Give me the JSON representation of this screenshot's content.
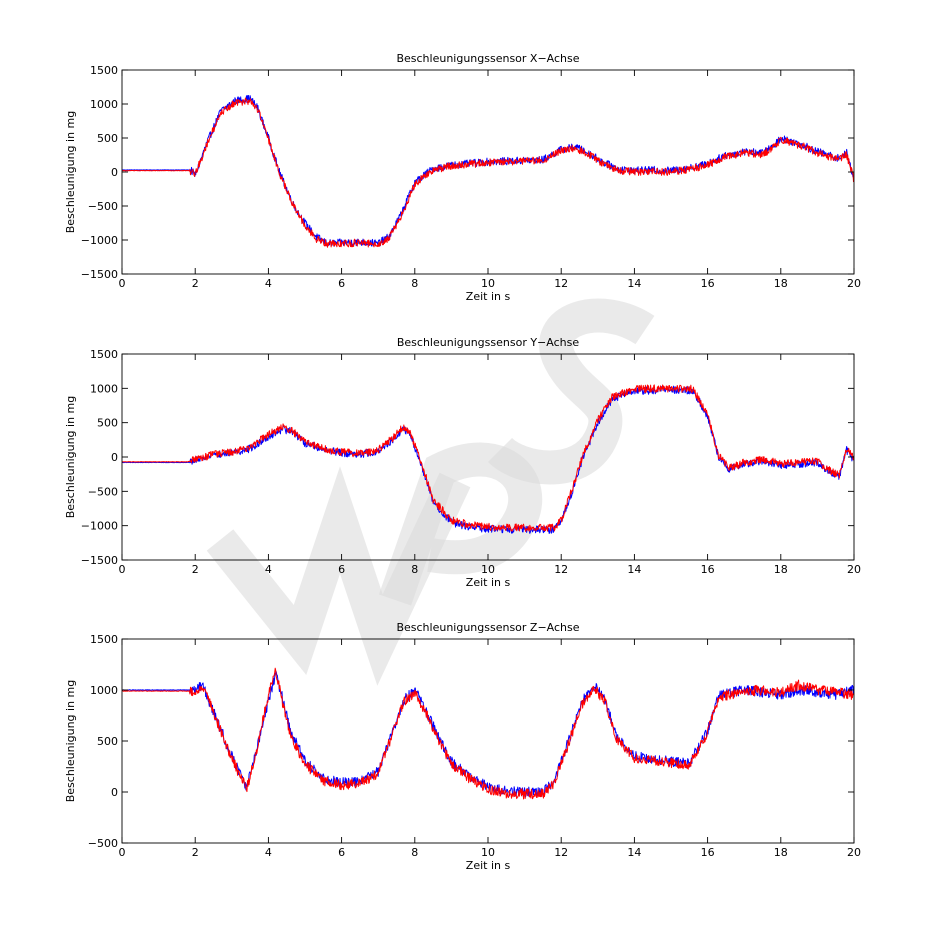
{
  "figure": {
    "background": "#ffffff",
    "watermark_icon": "wps-watermark-icon"
  },
  "chart_data": [
    {
      "type": "line",
      "title": "Beschleunigungssensor X−Achse",
      "xlabel": "Zeit in s",
      "ylabel": "Beschleunigung in mg",
      "xlim": [
        0,
        20
      ],
      "ylim": [
        -1500,
        1500
      ],
      "xticks": [
        0,
        2,
        4,
        6,
        8,
        10,
        12,
        14,
        16,
        18,
        20
      ],
      "yticks": [
        1500,
        1000,
        500,
        0,
        -500,
        -1000,
        -1500
      ],
      "grid": false,
      "noise_amplitude": 55,
      "series": [
        {
          "color": "#0000ff",
          "x": [
            0,
            1.8,
            1.9,
            2.0,
            2.3,
            2.7,
            3.1,
            3.5,
            3.7,
            4.0,
            4.3,
            4.7,
            5.0,
            5.3,
            5.6,
            6.0,
            6.5,
            7.0,
            7.3,
            7.6,
            8.0,
            8.5,
            9.0,
            10.0,
            11.0,
            11.5,
            12.0,
            12.4,
            12.8,
            13.2,
            13.6,
            14.0,
            14.5,
            15.0,
            15.5,
            16.0,
            16.5,
            17.0,
            17.5,
            17.8,
            18.0,
            18.3,
            18.6,
            19.0,
            19.3,
            19.6,
            19.8,
            20.0
          ],
          "y": [
            30,
            30,
            20,
            -50,
            400,
            900,
            1050,
            1080,
            950,
            500,
            0,
            -500,
            -750,
            -950,
            -1050,
            -1040,
            -1030,
            -1050,
            -950,
            -650,
            -150,
            50,
            100,
            150,
            170,
            180,
            330,
            370,
            260,
            130,
            40,
            20,
            30,
            20,
            60,
            120,
            250,
            300,
            280,
            380,
            500,
            450,
            400,
            300,
            250,
            200,
            280,
            -100
          ]
        },
        {
          "color": "#ff0000",
          "x": [
            0,
            1.8,
            1.9,
            2.0,
            2.3,
            2.7,
            3.1,
            3.5,
            3.7,
            4.0,
            4.3,
            4.7,
            5.0,
            5.3,
            5.6,
            6.0,
            6.5,
            7.0,
            7.3,
            7.6,
            8.0,
            8.5,
            9.0,
            10.0,
            11.0,
            11.5,
            12.0,
            12.4,
            12.8,
            13.2,
            13.6,
            14.0,
            14.5,
            15.0,
            15.5,
            16.0,
            16.5,
            17.0,
            17.5,
            17.8,
            18.0,
            18.3,
            18.6,
            19.0,
            19.3,
            19.6,
            19.8,
            20.0
          ],
          "y": [
            20,
            20,
            10,
            -40,
            380,
            880,
            1020,
            1050,
            930,
            480,
            -20,
            -520,
            -780,
            -980,
            -1060,
            -1050,
            -1040,
            -1060,
            -970,
            -680,
            -180,
            30,
            90,
            140,
            160,
            170,
            310,
            350,
            240,
            110,
            20,
            0,
            10,
            0,
            40,
            100,
            230,
            280,
            260,
            360,
            480,
            430,
            380,
            280,
            230,
            180,
            260,
            -120
          ]
        }
      ]
    },
    {
      "type": "line",
      "title": "Beschleunigungssensor Y−Achse",
      "xlabel": "Zeit in s",
      "ylabel": "Beschleunigung in mg",
      "xlim": [
        0,
        20
      ],
      "ylim": [
        -1500,
        1500
      ],
      "xticks": [
        0,
        2,
        4,
        6,
        8,
        10,
        12,
        14,
        16,
        18,
        20
      ],
      "yticks": [
        1500,
        1000,
        500,
        0,
        -500,
        -1000,
        -1500
      ],
      "grid": false,
      "noise_amplitude": 55,
      "series": [
        {
          "color": "#0000ff",
          "x": [
            0,
            1.8,
            2.0,
            2.5,
            3.0,
            3.5,
            4.0,
            4.4,
            4.6,
            5.0,
            5.5,
            6.0,
            6.5,
            7.0,
            7.4,
            7.7,
            7.9,
            8.2,
            8.5,
            9.0,
            9.5,
            10.0,
            11.0,
            11.8,
            12.0,
            12.3,
            12.6,
            13.0,
            13.4,
            14.0,
            15.0,
            15.6,
            16.0,
            16.3,
            16.6,
            17.0,
            17.5,
            18.0,
            18.5,
            19.0,
            19.3,
            19.6,
            19.8,
            20.0
          ],
          "y": [
            -80,
            -80,
            -50,
            30,
            60,
            120,
            300,
            400,
            380,
            200,
            120,
            60,
            40,
            80,
            250,
            420,
            300,
            -150,
            -650,
            -950,
            -1020,
            -1050,
            -1060,
            -1060,
            -950,
            -500,
            0,
            500,
            850,
            960,
            980,
            970,
            600,
            0,
            -180,
            -100,
            -50,
            -120,
            -100,
            -80,
            -200,
            -280,
            100,
            -50
          ]
        },
        {
          "color": "#ff0000",
          "x": [
            0,
            1.8,
            2.0,
            2.5,
            3.0,
            3.5,
            4.0,
            4.4,
            4.6,
            5.0,
            5.5,
            6.0,
            6.5,
            7.0,
            7.4,
            7.7,
            7.9,
            8.2,
            8.5,
            9.0,
            9.5,
            10.0,
            11.0,
            11.8,
            12.0,
            12.3,
            12.6,
            13.0,
            13.4,
            14.0,
            15.0,
            15.6,
            16.0,
            16.3,
            16.6,
            17.0,
            17.5,
            18.0,
            18.5,
            19.0,
            19.3,
            19.6,
            19.8,
            20.0
          ],
          "y": [
            -70,
            -70,
            -40,
            40,
            70,
            140,
            330,
            430,
            400,
            220,
            130,
            70,
            50,
            100,
            280,
            450,
            320,
            -120,
            -620,
            -920,
            -990,
            -1020,
            -1030,
            -1030,
            -920,
            -470,
            30,
            530,
            880,
            990,
            1000,
            990,
            620,
            20,
            -160,
            -80,
            -30,
            -100,
            -80,
            -60,
            -180,
            -260,
            120,
            -30
          ]
        }
      ]
    },
    {
      "type": "line",
      "title": "Beschleunigungssensor Z−Achse",
      "xlabel": "Zeit in s",
      "ylabel": "Beschleunigung in mg",
      "xlim": [
        0,
        20
      ],
      "ylim": [
        -500,
        1500
      ],
      "xticks": [
        0,
        2,
        4,
        6,
        8,
        10,
        12,
        14,
        16,
        18,
        20
      ],
      "yticks": [
        1500,
        1000,
        500,
        0,
        -500
      ],
      "grid": false,
      "noise_amplitude": 50,
      "series": [
        {
          "color": "#0000ff",
          "x": [
            0,
            1.8,
            2.0,
            2.2,
            2.6,
            3.0,
            3.4,
            3.6,
            3.8,
            4.0,
            4.2,
            4.4,
            4.6,
            5.0,
            5.5,
            6.0,
            6.5,
            7.0,
            7.4,
            7.7,
            8.0,
            8.3,
            8.7,
            9.0,
            9.5,
            10.0,
            10.5,
            11.0,
            11.5,
            11.8,
            12.2,
            12.6,
            12.9,
            13.2,
            13.5,
            14.0,
            15.0,
            15.5,
            16.0,
            16.3,
            17.0,
            17.5,
            18.0,
            18.5,
            19.0,
            19.5,
            20.0
          ],
          "y": [
            1000,
            1000,
            1000,
            1050,
            700,
            350,
            50,
            300,
            600,
            900,
            1150,
            900,
            600,
            300,
            130,
            90,
            100,
            200,
            600,
            900,
            1000,
            800,
            500,
            300,
            150,
            50,
            10,
            0,
            0,
            100,
            500,
            900,
            1050,
            900,
            550,
            350,
            300,
            280,
            600,
            950,
            1000,
            980,
            950,
            1000,
            980,
            950,
            1000
          ]
        },
        {
          "color": "#ff0000",
          "x": [
            0,
            1.8,
            2.0,
            2.2,
            2.6,
            3.0,
            3.4,
            3.6,
            3.8,
            4.0,
            4.2,
            4.4,
            4.6,
            5.0,
            5.5,
            6.0,
            6.5,
            7.0,
            7.4,
            7.7,
            8.0,
            8.3,
            8.7,
            9.0,
            9.5,
            10.0,
            10.5,
            11.0,
            11.5,
            11.8,
            12.2,
            12.6,
            12.9,
            13.2,
            13.5,
            14.0,
            15.0,
            15.5,
            16.0,
            16.3,
            17.0,
            17.5,
            18.0,
            18.5,
            19.0,
            19.5,
            20.0
          ],
          "y": [
            990,
            990,
            990,
            1040,
            690,
            330,
            30,
            280,
            620,
            950,
            1200,
            850,
            560,
            270,
            110,
            70,
            80,
            180,
            580,
            880,
            980,
            780,
            480,
            280,
            130,
            30,
            -10,
            -20,
            -20,
            80,
            480,
            880,
            1030,
            880,
            530,
            330,
            280,
            260,
            580,
            930,
            990,
            1000,
            980,
            1050,
            1000,
            980,
            950
          ]
        }
      ]
    }
  ]
}
